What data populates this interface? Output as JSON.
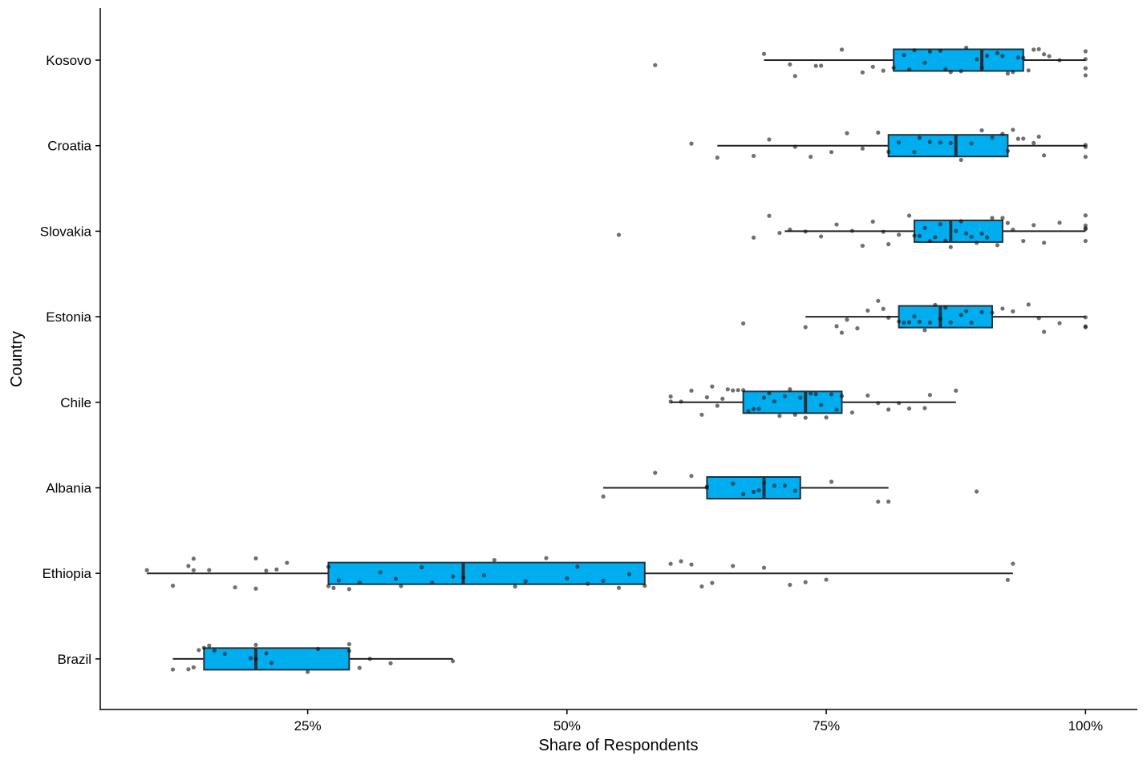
{
  "chart_data": {
    "type": "boxplot",
    "orientation": "horizontal",
    "xlabel": "Share of Respondents",
    "ylabel": "Country",
    "xlim": [
      5,
      105
    ],
    "xticks": [
      25,
      50,
      75,
      100
    ],
    "xtick_labels": [
      "25%",
      "50%",
      "75%",
      "100%"
    ],
    "grid": false,
    "legend": "none",
    "colors": {
      "box_fill": "#00AEEF",
      "box_stroke": "#1f3340",
      "whisker": "#222222",
      "point": "#111111"
    },
    "categories": [
      "Kosovo",
      "Croatia",
      "Slovakia",
      "Estonia",
      "Chile",
      "Albania",
      "Ethiopia",
      "Brazil"
    ],
    "boxes": [
      {
        "name": "Kosovo",
        "whislo": 69.0,
        "q1": 81.5,
        "med": 90.0,
        "q3": 94.0,
        "whishi": 100,
        "outliers": [
          58.5
        ]
      },
      {
        "name": "Croatia",
        "whislo": 64.5,
        "q1": 81.0,
        "med": 87.5,
        "q3": 92.5,
        "whishi": 100,
        "outliers": [
          62.0
        ]
      },
      {
        "name": "Slovakia",
        "whislo": 71.0,
        "q1": 83.5,
        "med": 87.0,
        "q3": 92.0,
        "whishi": 100,
        "outliers": [
          55.0
        ]
      },
      {
        "name": "Estonia",
        "whislo": 73.0,
        "q1": 82.0,
        "med": 86.0,
        "q3": 91.0,
        "whishi": 100,
        "outliers": [
          67.0
        ]
      },
      {
        "name": "Chile",
        "whislo": 60.0,
        "q1": 67.0,
        "med": 73.0,
        "q3": 76.5,
        "whishi": 87.5,
        "outliers": []
      },
      {
        "name": "Albania",
        "whislo": 53.5,
        "q1": 63.5,
        "med": 69.0,
        "q3": 72.5,
        "whishi": 81.0,
        "outliers": [
          89.5
        ]
      },
      {
        "name": "Ethiopia",
        "whislo": 9.5,
        "q1": 27.0,
        "med": 40.0,
        "q3": 57.5,
        "whishi": 93.0,
        "outliers": []
      },
      {
        "name": "Brazil",
        "whislo": 12.0,
        "q1": 15.0,
        "med": 20.0,
        "q3": 29.0,
        "whishi": 39.0,
        "outliers": []
      }
    ],
    "points": [
      {
        "country": "Kosovo",
        "values": [
          58.5,
          69.0,
          71.5,
          72.0,
          74.0,
          74.5,
          76.5,
          78.5,
          79.5,
          80.5,
          81.5,
          82.5,
          83.0,
          83.5,
          84.5,
          85.0,
          86.0,
          86.5,
          87.0,
          88.0,
          88.5,
          89.5,
          90.0,
          90.5,
          91.5,
          92.0,
          92.5,
          93.0,
          93.5,
          94.0,
          94.5,
          95.0,
          95.5,
          96.0,
          96.5,
          97.5,
          100,
          100,
          100,
          100
        ]
      },
      {
        "country": "Croatia",
        "values": [
          62.0,
          64.5,
          68.0,
          69.5,
          72.0,
          73.5,
          75.5,
          77.0,
          78.5,
          80.0,
          81.0,
          82.0,
          83.5,
          84.0,
          85.0,
          86.0,
          87.0,
          88.0,
          89.0,
          90.0,
          91.0,
          92.0,
          92.5,
          93.0,
          93.5,
          94.0,
          95.0,
          95.5,
          96.0,
          100,
          100,
          100
        ]
      },
      {
        "country": "Slovakia",
        "values": [
          55.0,
          68.0,
          69.5,
          70.5,
          71.5,
          73.0,
          74.5,
          76.0,
          77.5,
          78.5,
          79.5,
          80.5,
          81.0,
          82.0,
          83.0,
          83.5,
          84.0,
          84.5,
          85.0,
          85.5,
          86.0,
          86.5,
          87.0,
          87.5,
          88.0,
          88.5,
          89.0,
          89.5,
          90.0,
          90.5,
          91.0,
          91.5,
          92.0,
          92.5,
          93.0,
          94.0,
          95.0,
          96.0,
          97.5,
          100,
          100,
          100,
          100,
          100
        ]
      },
      {
        "country": "Estonia",
        "values": [
          67.0,
          73.0,
          76.0,
          76.5,
          77.0,
          78.0,
          79.0,
          80.0,
          80.5,
          81.0,
          82.0,
          82.5,
          83.0,
          83.5,
          84.0,
          84.5,
          85.0,
          85.5,
          86.0,
          86.5,
          87.0,
          88.0,
          88.5,
          89.0,
          90.0,
          91.0,
          92.0,
          93.0,
          94.5,
          95.5,
          96.0,
          97.5,
          100,
          100,
          100
        ]
      },
      {
        "country": "Chile",
        "values": [
          60.0,
          60.0,
          61.0,
          62.0,
          63.0,
          63.5,
          64.0,
          64.5,
          65.0,
          65.5,
          66.0,
          66.5,
          67.0,
          67.5,
          68.0,
          68.5,
          69.0,
          69.5,
          70.0,
          70.5,
          71.0,
          71.5,
          72.0,
          72.5,
          73.0,
          73.5,
          74.0,
          74.5,
          75.0,
          75.5,
          76.0,
          76.5,
          77.5,
          79.0,
          80.0,
          81.0,
          82.0,
          83.0,
          84.5,
          85.0,
          87.5
        ]
      },
      {
        "country": "Albania",
        "values": [
          53.5,
          58.5,
          62.0,
          63.5,
          63.5,
          66.0,
          67.0,
          68.0,
          68.5,
          69.0,
          70.0,
          71.0,
          72.0,
          75.5,
          80.0,
          81.0,
          89.5
        ]
      },
      {
        "country": "Ethiopia",
        "values": [
          9.5,
          12.0,
          13.5,
          14.0,
          14.0,
          15.5,
          18.0,
          20.0,
          20.0,
          21.0,
          22.0,
          23.0,
          27.0,
          27.0,
          27.5,
          28.0,
          29.0,
          30.0,
          32.0,
          33.5,
          34.0,
          36.0,
          37.0,
          39.0,
          40.0,
          42.0,
          43.0,
          45.0,
          46.0,
          48.0,
          50.0,
          51.0,
          52.0,
          53.5,
          55.0,
          56.0,
          57.5,
          60.0,
          61.0,
          62.0,
          63.0,
          64.0,
          66.0,
          69.0,
          71.5,
          73.0,
          75.0,
          92.5,
          93.0
        ]
      },
      {
        "country": "Brazil",
        "values": [
          12.0,
          13.5,
          14.0,
          14.5,
          15.0,
          15.5,
          16.0,
          17.0,
          19.5,
          20.0,
          20.0,
          21.0,
          21.5,
          25.0,
          26.0,
          29.0,
          29.0,
          30.0,
          31.0,
          33.0,
          39.0
        ]
      }
    ]
  }
}
